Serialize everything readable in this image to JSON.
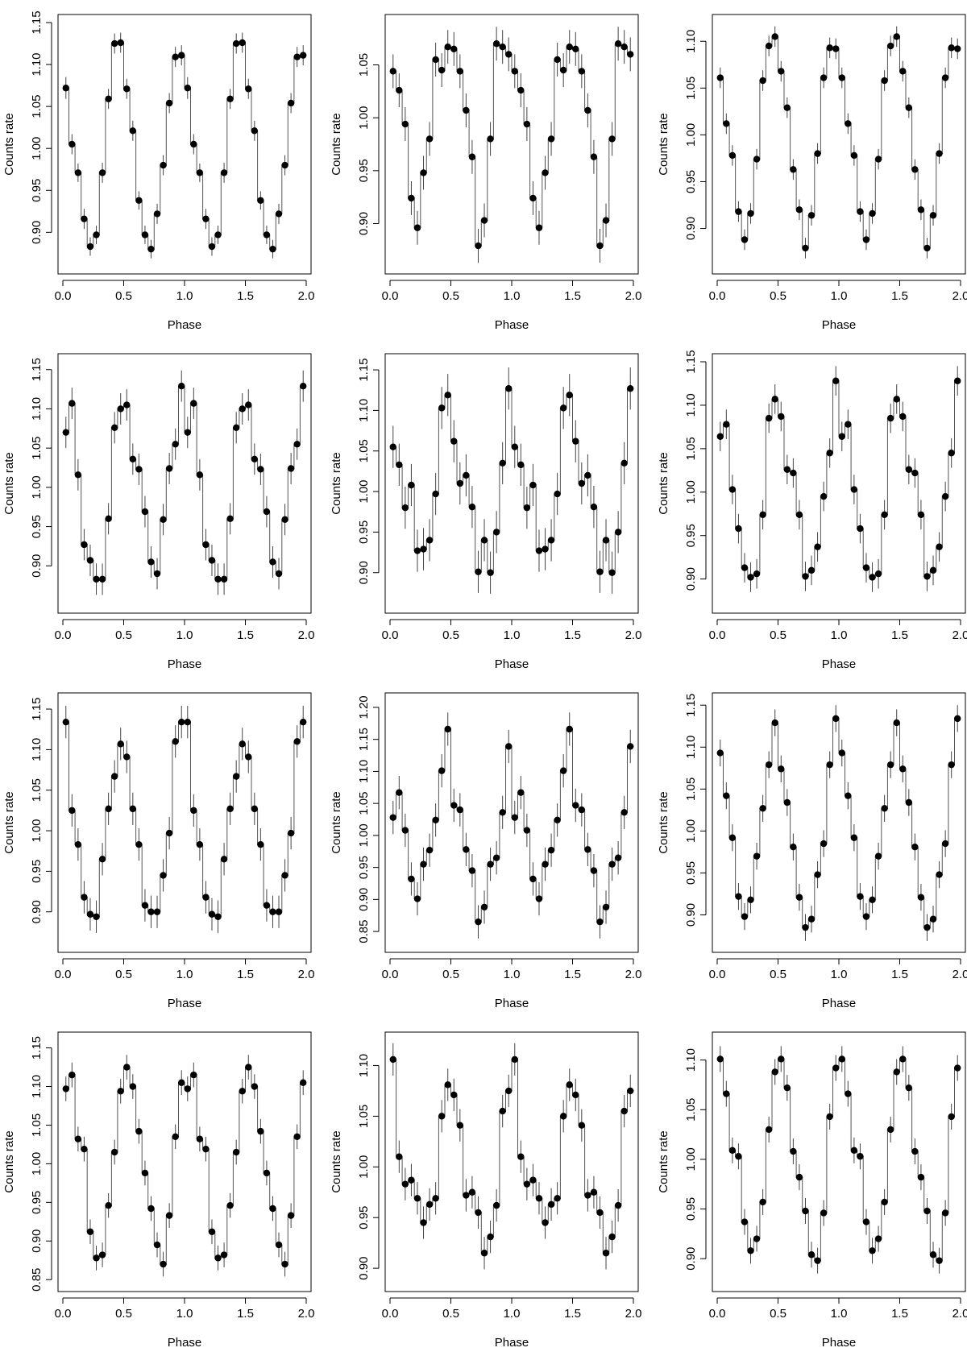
{
  "chart_data": [
    {
      "type": "scatter",
      "xlabel": "Phase",
      "ylabel": "Counts rate",
      "xlim": [
        0,
        2
      ],
      "ylim": [
        0.86,
        1.15
      ],
      "xticks": [
        "0.0",
        "0.5",
        "1.0",
        "1.5",
        "2.0"
      ],
      "yticks": [
        "0.90",
        "0.95",
        "1.00",
        "1.05",
        "1.10",
        "1.15"
      ],
      "x": [
        0.025,
        0.075,
        0.125,
        0.175,
        0.225,
        0.275,
        0.325,
        0.375,
        0.425,
        0.475,
        0.525,
        0.575,
        0.625,
        0.675,
        0.725,
        0.775,
        0.825,
        0.875,
        0.925,
        0.975
      ],
      "y": [
        1.072,
        1.005,
        0.971,
        0.916,
        0.883,
        0.897,
        0.971,
        1.059,
        1.125,
        1.126,
        1.071,
        1.021,
        0.938,
        0.897,
        0.88,
        0.922,
        0.98,
        1.054,
        1.109,
        1.111
      ],
      "err": [
        0.013,
        0.012,
        0.011,
        0.012,
        0.011,
        0.011,
        0.012,
        0.012,
        0.012,
        0.012,
        0.012,
        0.012,
        0.011,
        0.011,
        0.011,
        0.012,
        0.012,
        0.012,
        0.012,
        0.012
      ]
    },
    {
      "type": "scatter",
      "xlabel": "Phase",
      "ylabel": "Counts rate",
      "xlim": [
        0,
        2
      ],
      "ylim": [
        0.86,
        1.09
      ],
      "xticks": [
        "0.0",
        "0.5",
        "1.0",
        "1.5",
        "2.0"
      ],
      "yticks": [
        "0.90",
        "0.95",
        "1.00",
        "1.05"
      ],
      "x": [
        0.025,
        0.075,
        0.125,
        0.175,
        0.225,
        0.275,
        0.325,
        0.375,
        0.425,
        0.475,
        0.525,
        0.575,
        0.625,
        0.675,
        0.725,
        0.775,
        0.825,
        0.875,
        0.925,
        0.975
      ],
      "y": [
        1.044,
        1.026,
        0.994,
        0.924,
        0.896,
        0.948,
        0.98,
        1.055,
        1.045,
        1.067,
        1.065,
        1.044,
        1.007,
        0.963,
        0.879,
        0.903,
        0.98,
        1.07,
        1.067,
        1.06
      ],
      "err": [
        0.016,
        0.016,
        0.016,
        0.016,
        0.016,
        0.016,
        0.016,
        0.016,
        0.016,
        0.016,
        0.016,
        0.016,
        0.016,
        0.016,
        0.016,
        0.016,
        0.016,
        0.016,
        0.016,
        0.016
      ]
    },
    {
      "type": "scatter",
      "xlabel": "Phase",
      "ylabel": "Counts rate",
      "xlim": [
        0,
        2
      ],
      "ylim": [
        0.86,
        1.12
      ],
      "xticks": [
        "0.0",
        "0.5",
        "1.0",
        "1.5",
        "2.0"
      ],
      "yticks": [
        "0.90",
        "0.95",
        "1.00",
        "1.05",
        "1.10"
      ],
      "x": [
        0.025,
        0.075,
        0.125,
        0.175,
        0.225,
        0.275,
        0.325,
        0.375,
        0.425,
        0.475,
        0.525,
        0.575,
        0.625,
        0.675,
        0.725,
        0.775,
        0.825,
        0.875,
        0.925,
        0.975
      ],
      "y": [
        1.061,
        1.012,
        0.978,
        0.918,
        0.888,
        0.916,
        0.974,
        1.058,
        1.095,
        1.105,
        1.068,
        1.029,
        0.963,
        0.92,
        0.879,
        0.914,
        0.98,
        1.061,
        1.093,
        1.092
      ],
      "err": [
        0.011,
        0.011,
        0.011,
        0.011,
        0.011,
        0.011,
        0.011,
        0.011,
        0.011,
        0.011,
        0.011,
        0.011,
        0.011,
        0.011,
        0.011,
        0.011,
        0.011,
        0.011,
        0.011,
        0.011
      ]
    },
    {
      "type": "scatter",
      "xlabel": "Phase",
      "ylabel": "Counts rate",
      "xlim": [
        0,
        2
      ],
      "ylim": [
        0.85,
        1.16
      ],
      "xticks": [
        "0.0",
        "0.5",
        "1.0",
        "1.5",
        "2.0"
      ],
      "yticks": [
        "0.90",
        "0.95",
        "1.00",
        "1.05",
        "1.10",
        "1.15"
      ],
      "x": [
        0.025,
        0.075,
        0.125,
        0.175,
        0.225,
        0.275,
        0.325,
        0.375,
        0.425,
        0.475,
        0.525,
        0.575,
        0.625,
        0.675,
        0.725,
        0.775,
        0.825,
        0.875,
        0.925,
        0.975
      ],
      "y": [
        1.07,
        1.107,
        1.016,
        0.927,
        0.907,
        0.883,
        0.883,
        0.96,
        1.076,
        1.1,
        1.105,
        1.036,
        1.023,
        0.969,
        0.905,
        0.89,
        0.959,
        1.024,
        1.055,
        1.129
      ],
      "err": [
        0.02,
        0.02,
        0.02,
        0.02,
        0.02,
        0.02,
        0.02,
        0.02,
        0.02,
        0.02,
        0.02,
        0.02,
        0.02,
        0.02,
        0.02,
        0.02,
        0.02,
        0.02,
        0.02,
        0.02
      ]
    },
    {
      "type": "scatter",
      "xlabel": "Phase",
      "ylabel": "Counts rate",
      "xlim": [
        0,
        2
      ],
      "ylim": [
        0.86,
        1.16
      ],
      "xticks": [
        "0.0",
        "0.5",
        "1.0",
        "1.5",
        "2.0"
      ],
      "yticks": [
        "0.90",
        "0.95",
        "1.00",
        "1.05",
        "1.10",
        "1.15"
      ],
      "x": [
        0.025,
        0.075,
        0.125,
        0.175,
        0.225,
        0.275,
        0.325,
        0.375,
        0.425,
        0.475,
        0.525,
        0.575,
        0.625,
        0.675,
        0.725,
        0.775,
        0.825,
        0.875,
        0.925,
        0.975
      ],
      "y": [
        1.055,
        1.033,
        0.98,
        1.008,
        0.927,
        0.929,
        0.94,
        0.997,
        1.103,
        1.119,
        1.062,
        1.01,
        1.02,
        0.981,
        0.901,
        0.94,
        0.9,
        0.95,
        1.035,
        1.127
      ],
      "err": [
        0.026,
        0.026,
        0.026,
        0.026,
        0.026,
        0.026,
        0.026,
        0.026,
        0.026,
        0.026,
        0.026,
        0.026,
        0.026,
        0.026,
        0.026,
        0.026,
        0.026,
        0.026,
        0.026,
        0.026
      ]
    },
    {
      "type": "scatter",
      "xlabel": "Phase",
      "ylabel": "Counts rate",
      "xlim": [
        0,
        2
      ],
      "ylim": [
        0.87,
        1.15
      ],
      "xticks": [
        "0.0",
        "0.5",
        "1.0",
        "1.5",
        "2.0"
      ],
      "yticks": [
        "0.90",
        "0.95",
        "1.00",
        "1.05",
        "1.10",
        "1.15"
      ],
      "x": [
        0.025,
        0.075,
        0.125,
        0.175,
        0.225,
        0.275,
        0.325,
        0.375,
        0.425,
        0.475,
        0.525,
        0.575,
        0.625,
        0.675,
        0.725,
        0.775,
        0.825,
        0.875,
        0.925,
        0.975
      ],
      "y": [
        1.064,
        1.078,
        1.003,
        0.958,
        0.913,
        0.902,
        0.906,
        0.974,
        1.085,
        1.107,
        1.087,
        1.026,
        1.022,
        0.974,
        0.903,
        0.91,
        0.937,
        0.995,
        1.045,
        1.128
      ],
      "err": [
        0.017,
        0.017,
        0.017,
        0.017,
        0.017,
        0.017,
        0.017,
        0.017,
        0.017,
        0.017,
        0.017,
        0.017,
        0.017,
        0.017,
        0.017,
        0.017,
        0.017,
        0.017,
        0.017,
        0.017
      ]
    },
    {
      "type": "scatter",
      "xlabel": "Phase",
      "ylabel": "Counts rate",
      "xlim": [
        0,
        2
      ],
      "ylim": [
        0.86,
        1.16
      ],
      "xticks": [
        "0.0",
        "0.5",
        "1.0",
        "1.5",
        "2.0"
      ],
      "yticks": [
        "0.90",
        "0.95",
        "1.00",
        "1.05",
        "1.10",
        "1.15"
      ],
      "x": [
        0.025,
        0.075,
        0.125,
        0.175,
        0.225,
        0.275,
        0.325,
        0.375,
        0.425,
        0.475,
        0.525,
        0.575,
        0.625,
        0.675,
        0.725,
        0.775,
        0.825,
        0.875,
        0.925,
        0.975
      ],
      "y": [
        1.134,
        1.025,
        0.983,
        0.918,
        0.897,
        0.894,
        0.965,
        1.027,
        1.067,
        1.107,
        1.091,
        1.027,
        0.983,
        0.908,
        0.9,
        0.9,
        0.945,
        0.997,
        1.11,
        1.134
      ],
      "err": [
        0.02,
        0.02,
        0.02,
        0.02,
        0.02,
        0.02,
        0.02,
        0.02,
        0.02,
        0.02,
        0.02,
        0.02,
        0.02,
        0.02,
        0.02,
        0.02,
        0.02,
        0.02,
        0.02,
        0.02
      ]
    },
    {
      "type": "scatter",
      "xlabel": "Phase",
      "ylabel": "Counts rate",
      "xlim": [
        0,
        2
      ],
      "ylim": [
        0.83,
        1.21
      ],
      "xticks": [
        "0.0",
        "0.5",
        "1.0",
        "1.5",
        "2.0"
      ],
      "yticks": [
        "0.85",
        "0.90",
        "0.95",
        "1.00",
        "1.05",
        "1.10",
        "1.15",
        "1.20"
      ],
      "x": [
        0.025,
        0.075,
        0.125,
        0.175,
        0.225,
        0.275,
        0.325,
        0.375,
        0.425,
        0.475,
        0.525,
        0.575,
        0.625,
        0.675,
        0.725,
        0.775,
        0.825,
        0.875,
        0.925,
        0.975
      ],
      "y": [
        1.028,
        1.067,
        1.008,
        0.932,
        0.901,
        0.955,
        0.977,
        1.024,
        1.101,
        1.166,
        1.047,
        1.04,
        0.978,
        0.945,
        0.865,
        0.888,
        0.955,
        0.965,
        1.036,
        1.139
      ],
      "err": [
        0.026,
        0.026,
        0.026,
        0.026,
        0.026,
        0.026,
        0.026,
        0.026,
        0.026,
        0.026,
        0.026,
        0.026,
        0.026,
        0.026,
        0.026,
        0.026,
        0.026,
        0.026,
        0.026,
        0.026
      ]
    },
    {
      "type": "scatter",
      "xlabel": "Phase",
      "ylabel": "Counts rate",
      "xlim": [
        0,
        2
      ],
      "ylim": [
        0.865,
        1.155
      ],
      "xticks": [
        "0.0",
        "0.5",
        "1.0",
        "1.5",
        "2.0"
      ],
      "yticks": [
        "0.90",
        "0.95",
        "1.00",
        "1.05",
        "1.10",
        "1.15"
      ],
      "x": [
        0.025,
        0.075,
        0.125,
        0.175,
        0.225,
        0.275,
        0.325,
        0.375,
        0.425,
        0.475,
        0.525,
        0.575,
        0.625,
        0.675,
        0.725,
        0.775,
        0.825,
        0.875,
        0.925,
        0.975
      ],
      "y": [
        1.093,
        1.042,
        0.992,
        0.922,
        0.898,
        0.918,
        0.97,
        1.027,
        1.079,
        1.129,
        1.074,
        1.034,
        0.981,
        0.921,
        0.885,
        0.895,
        0.948,
        0.985,
        1.079,
        1.134
      ],
      "err": [
        0.016,
        0.016,
        0.016,
        0.016,
        0.016,
        0.016,
        0.016,
        0.016,
        0.016,
        0.016,
        0.016,
        0.016,
        0.016,
        0.016,
        0.016,
        0.016,
        0.016,
        0.016,
        0.016,
        0.016
      ]
    },
    {
      "type": "scatter",
      "xlabel": "Phase",
      "ylabel": "Counts rate",
      "xlim": [
        0,
        2
      ],
      "ylim": [
        0.845,
        1.16
      ],
      "xticks": [
        "0.0",
        "0.5",
        "1.0",
        "1.5",
        "2.0"
      ],
      "yticks": [
        "0.85",
        "0.90",
        "0.95",
        "1.00",
        "1.05",
        "1.10",
        "1.15"
      ],
      "x": [
        0.025,
        0.075,
        0.125,
        0.175,
        0.225,
        0.275,
        0.325,
        0.375,
        0.425,
        0.475,
        0.525,
        0.575,
        0.625,
        0.675,
        0.725,
        0.775,
        0.825,
        0.875,
        0.925,
        0.975
      ],
      "y": [
        1.097,
        1.115,
        1.032,
        1.019,
        0.912,
        0.878,
        0.882,
        0.946,
        1.015,
        1.094,
        1.125,
        1.1,
        1.042,
        0.988,
        0.942,
        0.895,
        0.87,
        0.933,
        1.035,
        1.105
      ],
      "err": [
        0.016,
        0.016,
        0.016,
        0.016,
        0.016,
        0.016,
        0.016,
        0.016,
        0.016,
        0.016,
        0.016,
        0.016,
        0.016,
        0.016,
        0.016,
        0.016,
        0.016,
        0.016,
        0.016,
        0.016
      ]
    },
    {
      "type": "scatter",
      "xlabel": "Phase",
      "ylabel": "Counts rate",
      "xlim": [
        0,
        2
      ],
      "ylim": [
        0.885,
        1.125
      ],
      "xticks": [
        "0.0",
        "0.5",
        "1.0",
        "1.5",
        "2.0"
      ],
      "yticks": [
        "0.90",
        "0.95",
        "1.00",
        "1.05",
        "1.10"
      ],
      "x": [
        0.025,
        0.075,
        0.125,
        0.175,
        0.225,
        0.275,
        0.325,
        0.375,
        0.425,
        0.475,
        0.525,
        0.575,
        0.625,
        0.675,
        0.725,
        0.775,
        0.825,
        0.875,
        0.925,
        0.975
      ],
      "y": [
        1.106,
        1.01,
        0.983,
        0.987,
        0.969,
        0.945,
        0.963,
        0.969,
        1.05,
        1.081,
        1.071,
        1.041,
        0.972,
        0.975,
        0.955,
        0.915,
        0.931,
        0.962,
        1.055,
        1.075
      ],
      "err": [
        0.016,
        0.016,
        0.016,
        0.016,
        0.016,
        0.016,
        0.016,
        0.016,
        0.016,
        0.016,
        0.016,
        0.016,
        0.016,
        0.016,
        0.016,
        0.016,
        0.016,
        0.016,
        0.016,
        0.016
      ]
    },
    {
      "type": "scatter",
      "xlabel": "Phase",
      "ylabel": "Counts rate",
      "xlim": [
        0,
        2
      ],
      "ylim": [
        0.875,
        1.12
      ],
      "xticks": [
        "0.0",
        "0.5",
        "1.0",
        "1.5",
        "2.0"
      ],
      "yticks": [
        "0.90",
        "0.95",
        "1.00",
        "1.05",
        "1.10"
      ],
      "x": [
        0.025,
        0.075,
        0.125,
        0.175,
        0.225,
        0.275,
        0.325,
        0.375,
        0.425,
        0.475,
        0.525,
        0.575,
        0.625,
        0.675,
        0.725,
        0.775,
        0.825,
        0.875,
        0.925,
        0.975
      ],
      "y": [
        1.101,
        1.066,
        1.009,
        1.003,
        0.937,
        0.908,
        0.92,
        0.957,
        1.03,
        1.088,
        1.101,
        1.072,
        1.008,
        0.982,
        0.948,
        0.904,
        0.898,
        0.946,
        1.043,
        1.092
      ],
      "err": [
        0.013,
        0.013,
        0.013,
        0.013,
        0.013,
        0.013,
        0.013,
        0.013,
        0.013,
        0.013,
        0.013,
        0.013,
        0.013,
        0.013,
        0.013,
        0.013,
        0.013,
        0.013,
        0.013,
        0.013
      ]
    }
  ]
}
